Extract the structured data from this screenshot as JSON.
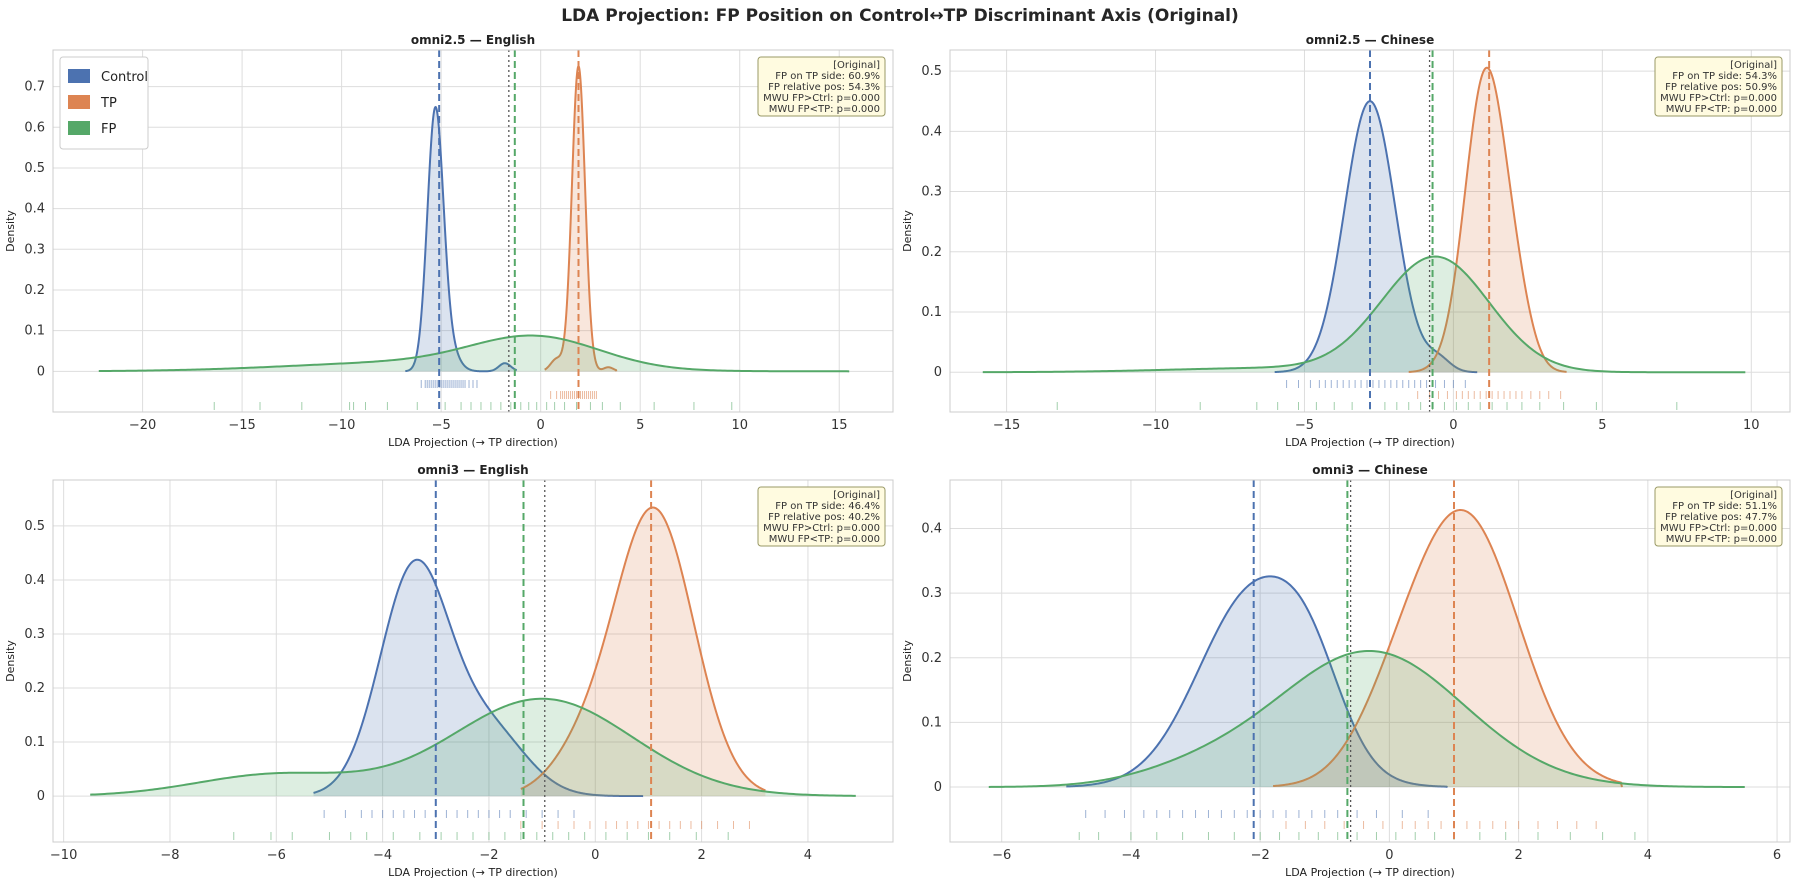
{
  "figure": {
    "title": "LDA Projection: FP Position on Control↔TP Discriminant Axis (Original)"
  },
  "colors": {
    "control": "#4c72b0",
    "tp": "#dd8452",
    "fp": "#55a868",
    "midline": "#555555",
    "grid": "#dddddd",
    "annotation_bg": "#fffbe0",
    "annotation_border": "#999966"
  },
  "legend": {
    "entries": [
      {
        "label": "Control",
        "color": "#4c72b0"
      },
      {
        "label": "TP",
        "color": "#dd8452"
      },
      {
        "label": "FP",
        "color": "#55a868"
      }
    ],
    "placement": "upper-left of first panel"
  },
  "chart_data": [
    {
      "type": "area",
      "title": "omni2.5 — English",
      "xlabel": "LDA Projection  (→ TP direction)",
      "ylabel": "Density",
      "xlim": [
        -24.5,
        17.7
      ],
      "ylim": [
        -0.1,
        0.79
      ],
      "xticks": [
        -20,
        -15,
        -10,
        -5,
        0,
        5,
        10,
        15
      ],
      "yticks": [
        0.0,
        0.1,
        0.2,
        0.3,
        0.4,
        0.5,
        0.6,
        0.7
      ],
      "grid": true,
      "legend": true,
      "series": [
        {
          "name": "Control",
          "mean": -5.1,
          "peaks": [
            [
              -5.3,
              0.62,
              0.4
            ],
            [
              -4.7,
              0.06,
              0.5
            ],
            [
              -1.8,
              0.02,
              0.3
            ]
          ],
          "range": [
            -6.8,
            -1.2
          ]
        },
        {
          "name": "TP",
          "mean": 1.9,
          "peaks": [
            [
              1.9,
              0.75,
              0.33
            ],
            [
              0.8,
              0.03,
              0.3
            ],
            [
              3.4,
              0.01,
              0.25
            ]
          ],
          "range": [
            0.2,
            3.8
          ]
        },
        {
          "name": "FP",
          "mean": -1.3,
          "peaks": [
            [
              -0.2,
              0.075,
              3.2
            ],
            [
              -6.5,
              0.022,
              6
            ]
          ],
          "range": [
            -22.2,
            15.5
          ]
        }
      ],
      "midpoint": -1.6,
      "rugs": {
        "Control": [
          -6.0,
          -5.8,
          -5.7,
          -5.6,
          -5.5,
          -5.4,
          -5.3,
          -5.2,
          -5.1,
          -5.0,
          -4.9,
          -4.8,
          -4.7,
          -4.6,
          -4.5,
          -4.4,
          -4.3,
          -4.2,
          -4.1,
          -4.0,
          -3.9,
          -3.8,
          -3.6,
          -3.4,
          -3.2
        ],
        "TP": [
          0.5,
          0.8,
          1.0,
          1.1,
          1.2,
          1.3,
          1.4,
          1.5,
          1.6,
          1.7,
          1.8,
          1.9,
          2.0,
          2.1,
          2.2,
          2.3,
          2.4,
          2.5,
          2.6,
          2.7,
          2.8
        ],
        "FP": [
          -16.4,
          -14.1,
          -12.0,
          -9.6,
          -9.4,
          -8.8,
          -7.7,
          -6.2,
          -4.8,
          -4.0,
          -3.5,
          -3.0,
          -2.5,
          -2.0,
          -1.5,
          -1.0,
          -0.6,
          -0.2,
          0.3,
          0.7,
          1.2,
          1.8,
          2.5,
          3.1,
          4.0,
          5.7,
          7.7,
          9.6
        ]
      },
      "annotation": [
        "[Original]",
        "FP on TP side: 60.9%",
        "FP relative pos: 54.3%",
        "MWU FP>Ctrl: p=0.000",
        "MWU FP<TP:   p=0.000"
      ]
    },
    {
      "type": "area",
      "title": "omni2.5 — Chinese",
      "xlabel": "LDA Projection  (→ TP direction)",
      "ylabel": "Density",
      "xlim": [
        -16.9,
        11.3
      ],
      "ylim": [
        -0.066,
        0.535
      ],
      "xticks": [
        -15,
        -10,
        -5,
        0,
        5,
        10
      ],
      "yticks": [
        0.0,
        0.1,
        0.2,
        0.3,
        0.4,
        0.5
      ],
      "grid": true,
      "legend": false,
      "series": [
        {
          "name": "Control",
          "mean": -2.8,
          "peaks": [
            [
              -2.8,
              0.45,
              0.85
            ],
            [
              -0.5,
              0.02,
              0.4
            ]
          ],
          "range": [
            -6.0,
            0.8
          ]
        },
        {
          "name": "TP",
          "mean": 1.2,
          "peaks": [
            [
              1.1,
              0.5,
              0.7
            ],
            [
              2.2,
              0.06,
              0.5
            ]
          ],
          "range": [
            -1.5,
            3.8
          ]
        },
        {
          "name": "FP",
          "mean": -0.7,
          "peaks": [
            [
              -0.6,
              0.19,
              1.8
            ],
            [
              -6.0,
              0.007,
              3.5
            ]
          ],
          "range": [
            -15.8,
            9.8
          ]
        }
      ],
      "midpoint": -0.8,
      "rugs": {
        "Control": [
          -5.6,
          -5.2,
          -4.8,
          -4.5,
          -4.3,
          -4.1,
          -3.9,
          -3.7,
          -3.5,
          -3.3,
          -3.1,
          -2.9,
          -2.7,
          -2.5,
          -2.3,
          -2.1,
          -1.9,
          -1.7,
          -1.5,
          -1.3,
          -1.1,
          -0.9,
          -0.6,
          -0.3,
          0.0,
          0.4
        ],
        "TP": [
          -1.2,
          -0.8,
          -0.5,
          -0.2,
          0.1,
          0.3,
          0.5,
          0.7,
          0.9,
          1.1,
          1.3,
          1.5,
          1.7,
          1.9,
          2.1,
          2.3,
          2.6,
          2.9,
          3.2,
          3.6
        ],
        "FP": [
          -13.3,
          -8.5,
          -6.6,
          -5.9,
          -5.2,
          -4.6,
          -4.0,
          -3.4,
          -2.8,
          -2.3,
          -1.9,
          -1.5,
          -1.1,
          -0.7,
          -0.3,
          0.1,
          0.5,
          0.9,
          1.3,
          1.8,
          2.3,
          2.9,
          3.7,
          4.8,
          7.5
        ]
      },
      "annotation": [
        "[Original]",
        "FP on TP side: 54.3%",
        "FP relative pos: 50.9%",
        "MWU FP>Ctrl: p=0.000",
        "MWU FP<TP:   p=0.000"
      ]
    },
    {
      "type": "area",
      "title": "omni3 — English",
      "xlabel": "LDA Projection  (→ TP direction)",
      "ylabel": "Density",
      "xlim": [
        -10.2,
        5.6
      ],
      "ylim": [
        -0.085,
        0.585
      ],
      "xticks": [
        -10,
        -8,
        -6,
        -4,
        -2,
        0,
        2,
        4
      ],
      "yticks": [
        0.0,
        0.1,
        0.2,
        0.3,
        0.4,
        0.5
      ],
      "grid": true,
      "legend": false,
      "series": [
        {
          "name": "Control",
          "mean": -3.0,
          "peaks": [
            [
              -3.4,
              0.42,
              0.65
            ],
            [
              -2.0,
              0.12,
              0.7
            ]
          ],
          "range": [
            -5.3,
            0.9
          ]
        },
        {
          "name": "TP",
          "mean": 1.05,
          "peaks": [
            [
              1.1,
              0.53,
              0.75
            ],
            [
              -0.3,
              0.06,
              0.6
            ]
          ],
          "range": [
            -1.4,
            3.2
          ]
        },
        {
          "name": "FP",
          "mean": -1.35,
          "peaks": [
            [
              -1.0,
              0.18,
              1.7
            ],
            [
              -6.0,
              0.04,
              1.5
            ]
          ],
          "range": [
            -9.5,
            4.9
          ]
        }
      ],
      "midpoint": -0.95,
      "rugs": {
        "Control": [
          -5.1,
          -4.7,
          -4.4,
          -4.2,
          -4.0,
          -3.8,
          -3.6,
          -3.4,
          -3.2,
          -3.0,
          -2.8,
          -2.6,
          -2.4,
          -2.2,
          -2.0,
          -1.8,
          -1.6,
          -1.3,
          -1.0,
          -0.7,
          -0.4
        ],
        "TP": [
          -1.4,
          -1.0,
          -0.7,
          -0.4,
          -0.1,
          0.2,
          0.4,
          0.6,
          0.8,
          1.0,
          1.2,
          1.4,
          1.6,
          1.8,
          2.0,
          2.3,
          2.6,
          2.9
        ],
        "FP": [
          -6.8,
          -6.1,
          -5.7,
          -5.0,
          -4.6,
          -4.3,
          -3.8,
          -3.3,
          -2.9,
          -2.6,
          -2.3,
          -2.0,
          -1.7,
          -1.4,
          -1.1,
          -0.8,
          -0.5,
          -0.2,
          0.2,
          0.6,
          1.0,
          1.4,
          1.9,
          2.5
        ]
      },
      "annotation": [
        "[Original]",
        "FP on TP side: 46.4%",
        "FP relative pos: 40.2%",
        "MWU FP>Ctrl: p=0.000",
        "MWU FP<TP:   p=0.000"
      ]
    },
    {
      "type": "area",
      "title": "omni3 — Chinese",
      "xlabel": "LDA Projection  (→ TP direction)",
      "ylabel": "Density",
      "xlim": [
        -6.8,
        6.2
      ],
      "ylim": [
        -0.085,
        0.475
      ],
      "xticks": [
        -6,
        -4,
        -2,
        0,
        2,
        4,
        6
      ],
      "yticks": [
        0.0,
        0.1,
        0.2,
        0.3,
        0.4
      ],
      "grid": true,
      "legend": false,
      "series": [
        {
          "name": "Control",
          "mean": -2.1,
          "peaks": [
            [
              -2.1,
              0.3,
              0.85
            ],
            [
              -1.2,
              0.09,
              0.5
            ]
          ],
          "range": [
            -5.0,
            0.9
          ]
        },
        {
          "name": "TP",
          "mean": 1.0,
          "peaks": [
            [
              1.15,
              0.42,
              0.85
            ],
            [
              0.0,
              0.05,
              0.6
            ]
          ],
          "range": [
            -1.8,
            3.6
          ]
        },
        {
          "name": "FP",
          "mean": -0.65,
          "peaks": [
            [
              -0.3,
              0.21,
              1.45
            ],
            [
              -3.0,
              0.02,
              1.0
            ]
          ],
          "range": [
            -6.2,
            5.5
          ]
        }
      ],
      "midpoint": -0.6,
      "rugs": {
        "Control": [
          -4.7,
          -4.4,
          -4.1,
          -3.8,
          -3.6,
          -3.4,
          -3.2,
          -3.0,
          -2.8,
          -2.6,
          -2.4,
          -2.2,
          -2.0,
          -1.8,
          -1.6,
          -1.4,
          -1.2,
          -1.0,
          -0.8,
          -0.5,
          -0.2,
          0.2,
          0.6
        ],
        "TP": [
          -1.6,
          -1.3,
          -1.0,
          -0.7,
          -0.4,
          -0.1,
          0.2,
          0.4,
          0.6,
          0.8,
          1.0,
          1.2,
          1.4,
          1.6,
          1.8,
          2.0,
          2.3,
          2.6,
          2.9,
          3.2
        ],
        "FP": [
          -4.8,
          -4.5,
          -4.0,
          -3.6,
          -3.2,
          -2.8,
          -2.4,
          -2.0,
          -1.7,
          -1.4,
          -1.1,
          -0.8,
          -0.5,
          -0.2,
          0.1,
          0.4,
          0.7,
          1.0,
          1.4,
          1.8,
          2.3,
          2.8,
          3.3,
          3.8
        ]
      },
      "annotation": [
        "[Original]",
        "FP on TP side: 51.1%",
        "FP relative pos: 47.7%",
        "MWU FP>Ctrl: p=0.000",
        "MWU FP<TP:   p=0.000"
      ]
    }
  ]
}
